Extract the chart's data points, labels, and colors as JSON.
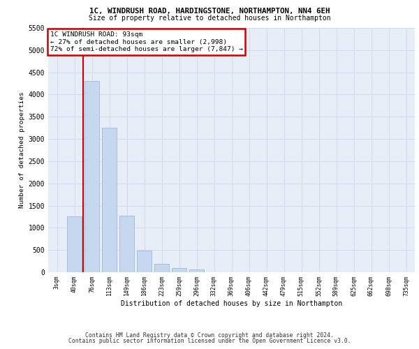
{
  "title1": "1C, WINDRUSH ROAD, HARDINGSTONE, NORTHAMPTON, NN4 6EH",
  "title2": "Size of property relative to detached houses in Northampton",
  "xlabel": "Distribution of detached houses by size in Northampton",
  "ylabel": "Number of detached properties",
  "categories": [
    "3sqm",
    "40sqm",
    "76sqm",
    "113sqm",
    "149sqm",
    "186sqm",
    "223sqm",
    "259sqm",
    "296sqm",
    "332sqm",
    "369sqm",
    "406sqm",
    "442sqm",
    "479sqm",
    "515sqm",
    "552sqm",
    "589sqm",
    "625sqm",
    "662sqm",
    "698sqm",
    "735sqm"
  ],
  "values": [
    0,
    1250,
    4300,
    3250,
    1280,
    480,
    190,
    90,
    60,
    0,
    0,
    0,
    0,
    0,
    0,
    0,
    0,
    0,
    0,
    0,
    0
  ],
  "bar_color": "#c5d8f0",
  "bar_edge_color": "#a0b8d8",
  "grid_color": "#d0d8e8",
  "background_color": "#e8eef8",
  "vline_color": "#cc0000",
  "annotation_text": "1C WINDRUSH ROAD: 93sqm\n← 27% of detached houses are smaller (2,998)\n72% of semi-detached houses are larger (7,847) →",
  "annotation_box_color": "#ffffff",
  "annotation_box_edge": "#cc0000",
  "ylim": [
    0,
    5500
  ],
  "yticks": [
    0,
    500,
    1000,
    1500,
    2000,
    2500,
    3000,
    3500,
    4000,
    4500,
    5000,
    5500
  ],
  "footer1": "Contains HM Land Registry data © Crown copyright and database right 2024.",
  "footer2": "Contains public sector information licensed under the Open Government Licence v3.0."
}
